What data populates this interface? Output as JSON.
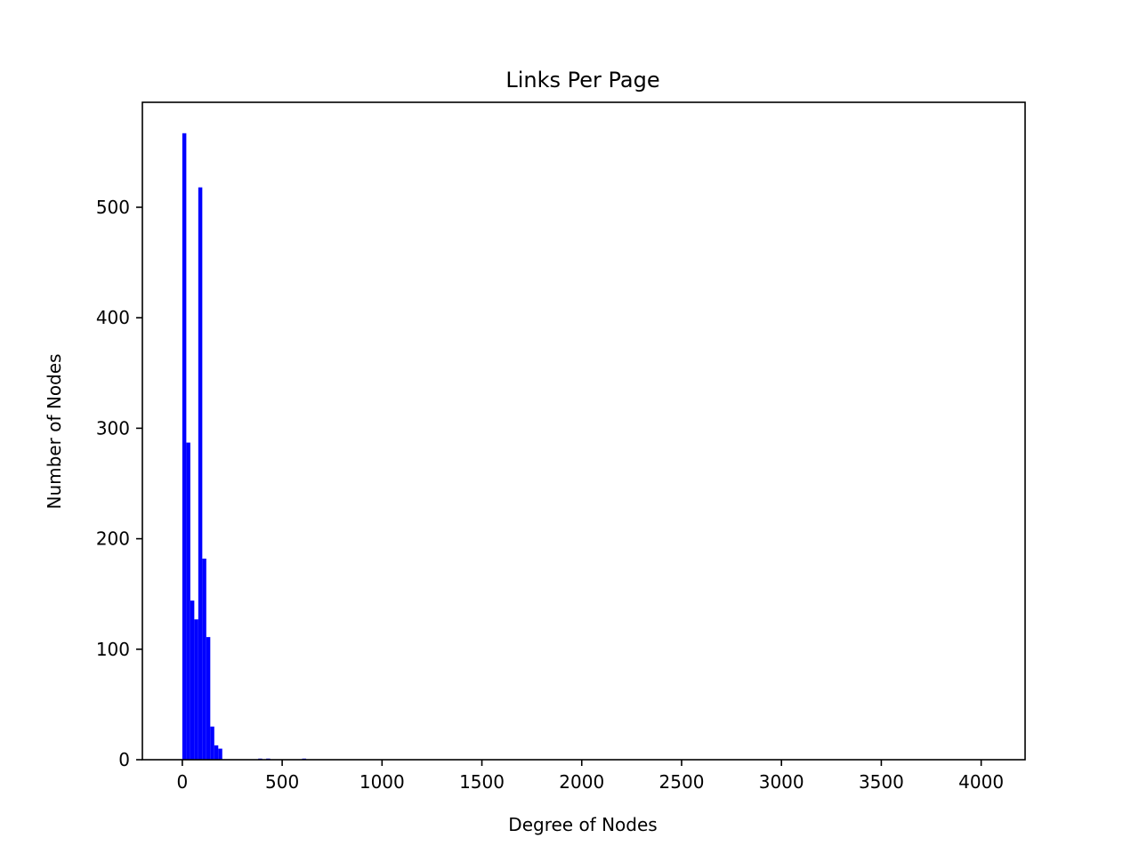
{
  "chart_data": {
    "type": "bar",
    "title": "Links Per Page",
    "xlabel": "Degree of Nodes",
    "ylabel": "Number of Nodes",
    "xlim": [
      -200,
      4220
    ],
    "ylim": [
      0,
      595
    ],
    "grid": false,
    "legend": "none",
    "bar_color": "#0000ff",
    "bin_width": 20,
    "x_ticks": [
      0,
      500,
      1000,
      1500,
      2000,
      2500,
      3000,
      3500,
      4000
    ],
    "x_tick_labels": [
      "0",
      "500",
      "1000",
      "1500",
      "2000",
      "2500",
      "3000",
      "3500",
      "4000"
    ],
    "y_ticks": [
      0,
      100,
      200,
      300,
      400,
      500
    ],
    "y_tick_labels": [
      "0",
      "100",
      "200",
      "300",
      "400",
      "500"
    ],
    "bins": [
      {
        "x": 0,
        "count": 567
      },
      {
        "x": 20,
        "count": 287
      },
      {
        "x": 40,
        "count": 144
      },
      {
        "x": 60,
        "count": 127
      },
      {
        "x": 80,
        "count": 518
      },
      {
        "x": 100,
        "count": 182
      },
      {
        "x": 120,
        "count": 111
      },
      {
        "x": 140,
        "count": 30
      },
      {
        "x": 160,
        "count": 13
      },
      {
        "x": 180,
        "count": 10
      },
      {
        "x": 380,
        "count": 1
      },
      {
        "x": 420,
        "count": 1
      },
      {
        "x": 600,
        "count": 1
      }
    ]
  }
}
